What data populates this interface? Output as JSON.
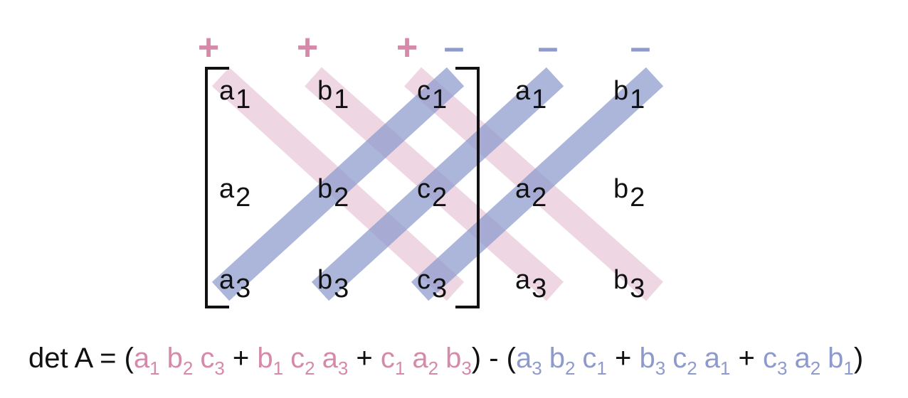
{
  "colors": {
    "plus": "#d48aa8",
    "minus": "#8e9acc",
    "pink_band": "#e8c9d8",
    "blue_band": "#8c98cc",
    "text": "#111111"
  },
  "signs": {
    "plus": [
      "+",
      "+",
      "+"
    ],
    "minus": [
      "–",
      "–",
      "–"
    ]
  },
  "matrix": {
    "rows": [
      [
        {
          "l": "a",
          "s": "1"
        },
        {
          "l": "b",
          "s": "1"
        },
        {
          "l": "c",
          "s": "1"
        },
        {
          "l": "a",
          "s": "1"
        },
        {
          "l": "b",
          "s": "1"
        }
      ],
      [
        {
          "l": "a",
          "s": "2"
        },
        {
          "l": "b",
          "s": "2"
        },
        {
          "l": "c",
          "s": "2"
        },
        {
          "l": "a",
          "s": "2"
        },
        {
          "l": "b",
          "s": "2"
        }
      ],
      [
        {
          "l": "a",
          "s": "3"
        },
        {
          "l": "b",
          "s": "3"
        },
        {
          "l": "c",
          "s": "3"
        },
        {
          "l": "a",
          "s": "3"
        },
        {
          "l": "b",
          "s": "3"
        }
      ]
    ]
  },
  "formula": {
    "prefix": "det A = (",
    "pos": [
      [
        {
          "l": "a",
          "s": "1"
        },
        {
          "l": "b",
          "s": "2"
        },
        {
          "l": "c",
          "s": "3"
        }
      ],
      [
        {
          "l": "b",
          "s": "1"
        },
        {
          "l": "c",
          "s": "2"
        },
        {
          "l": "a",
          "s": "3"
        }
      ],
      [
        {
          "l": "c",
          "s": "1"
        },
        {
          "l": "a",
          "s": "2"
        },
        {
          "l": "b",
          "s": "3"
        }
      ]
    ],
    "middle": ") - (",
    "neg": [
      [
        {
          "l": "a",
          "s": "3"
        },
        {
          "l": "b",
          "s": "2"
        },
        {
          "l": "c",
          "s": "1"
        }
      ],
      [
        {
          "l": "b",
          "s": "3"
        },
        {
          "l": "c",
          "s": "2"
        },
        {
          "l": "a",
          "s": "1"
        }
      ],
      [
        {
          "l": "c",
          "s": "3"
        },
        {
          "l": "a",
          "s": "2"
        },
        {
          "l": "b",
          "s": "1"
        }
      ]
    ],
    "plus": "+",
    "suffix": ")"
  }
}
